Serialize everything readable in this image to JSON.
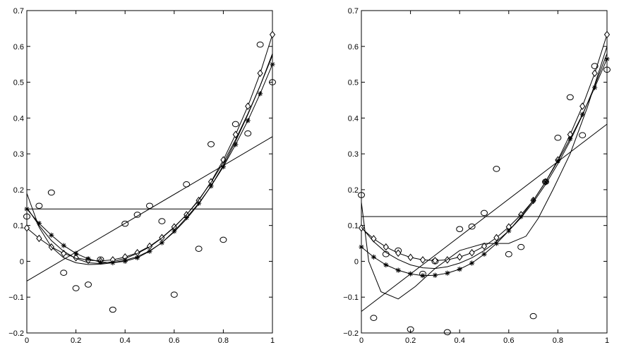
{
  "chart_data": [
    {
      "type": "scatter",
      "xlim": [
        0,
        1
      ],
      "ylim": [
        -0.2,
        0.7
      ],
      "x_ticks": [
        0,
        0.2,
        0.4,
        0.6,
        0.8,
        1
      ],
      "x_tick_labels": [
        "0",
        "0.2",
        "0.4",
        "0.6",
        "0.8",
        "1"
      ],
      "y_ticks": [
        -0.2,
        -0.1,
        0,
        0.1,
        0.2,
        0.3,
        0.4,
        0.5,
        0.6,
        0.7
      ],
      "y_tick_labels": [
        "−0.2",
        "−0.1",
        "0",
        "0.1",
        "0.2",
        "0.3",
        "0.4",
        "0.5",
        "0.6",
        "0.7"
      ],
      "grid": false,
      "series": [
        {
          "marker": "circle",
          "points": [
            [
              0,
              0.125
            ],
            [
              0.05,
              0.155
            ],
            [
              0.1,
              0.192
            ],
            [
              0.15,
              -0.032
            ],
            [
              0.2,
              -0.075
            ],
            [
              0.25,
              -0.065
            ],
            [
              0.3,
              0.005
            ],
            [
              0.35,
              -0.135
            ],
            [
              0.4,
              0.105
            ],
            [
              0.45,
              0.13
            ],
            [
              0.5,
              0.155
            ],
            [
              0.55,
              0.112
            ],
            [
              0.6,
              -0.093
            ],
            [
              0.65,
              0.215
            ],
            [
              0.7,
              0.035
            ],
            [
              0.75,
              0.327
            ],
            [
              0.8,
              0.06
            ],
            [
              0.85,
              0.383
            ],
            [
              0.9,
              0.357
            ],
            [
              0.95,
              0.605
            ],
            [
              1,
              0.5
            ]
          ]
        },
        {
          "marker": "diamond",
          "points": [
            [
              0,
              0.093
            ],
            [
              0.05,
              0.064
            ],
            [
              0.1,
              0.04
            ],
            [
              0.15,
              0.022
            ],
            [
              0.2,
              0.01
            ],
            [
              0.25,
              0.003
            ],
            [
              0.3,
              0.001
            ],
            [
              0.35,
              0.004
            ],
            [
              0.4,
              0.012
            ],
            [
              0.45,
              0.024
            ],
            [
              0.5,
              0.042
            ],
            [
              0.55,
              0.066
            ],
            [
              0.6,
              0.096
            ],
            [
              0.65,
              0.13
            ],
            [
              0.7,
              0.17
            ],
            [
              0.75,
              0.222
            ],
            [
              0.8,
              0.283
            ],
            [
              0.85,
              0.354
            ],
            [
              0.9,
              0.433
            ],
            [
              0.95,
              0.525
            ],
            [
              1,
              0.633
            ]
          ]
        },
        {
          "marker": "star",
          "points": [
            [
              0,
              0.146
            ],
            [
              0.05,
              0.106
            ],
            [
              0.1,
              0.073
            ],
            [
              0.15,
              0.044
            ],
            [
              0.2,
              0.022
            ],
            [
              0.25,
              0.007
            ],
            [
              0.3,
              -0.002
            ],
            [
              0.35,
              -0.004
            ],
            [
              0.4,
              0.0
            ],
            [
              0.45,
              0.01
            ],
            [
              0.5,
              0.028
            ],
            [
              0.55,
              0.052
            ],
            [
              0.6,
              0.084
            ],
            [
              0.65,
              0.122
            ],
            [
              0.7,
              0.162
            ],
            [
              0.75,
              0.21
            ],
            [
              0.8,
              0.264
            ],
            [
              0.85,
              0.326
            ],
            [
              0.9,
              0.393
            ],
            [
              0.95,
              0.468
            ],
            [
              1,
              0.55
            ]
          ]
        },
        {
          "line": true,
          "points": [
            [
              0,
              0.146
            ],
            [
              1,
              0.146
            ]
          ]
        },
        {
          "line": true,
          "points": [
            [
              0,
              -0.055
            ],
            [
              1,
              0.348
            ]
          ]
        },
        {
          "line": true,
          "points": [
            [
              0,
              0.19
            ],
            [
              0.05,
              0.095
            ],
            [
              0.1,
              0.04
            ],
            [
              0.15,
              0.01
            ],
            [
              0.2,
              -0.004
            ],
            [
              0.25,
              -0.009
            ],
            [
              0.3,
              -0.008
            ],
            [
              0.35,
              -0.004
            ],
            [
              0.4,
              0.003
            ],
            [
              0.45,
              0.013
            ],
            [
              0.5,
              0.029
            ],
            [
              0.55,
              0.052
            ],
            [
              0.6,
              0.082
            ],
            [
              0.65,
              0.118
            ],
            [
              0.7,
              0.16
            ],
            [
              0.75,
              0.21
            ],
            [
              0.8,
              0.268
            ],
            [
              0.85,
              0.335
            ],
            [
              0.9,
              0.41
            ],
            [
              0.95,
              0.49
            ],
            [
              1,
              0.575
            ]
          ]
        },
        {
          "line": true,
          "points": [
            [
              0,
              0.15
            ],
            [
              0.05,
              0.1
            ],
            [
              0.1,
              0.058
            ],
            [
              0.15,
              0.028
            ],
            [
              0.2,
              0.008
            ],
            [
              0.25,
              -0.004
            ],
            [
              0.3,
              -0.006
            ],
            [
              0.35,
              -0.001
            ],
            [
              0.4,
              0.008
            ],
            [
              0.45,
              0.022
            ],
            [
              0.5,
              0.04
            ],
            [
              0.55,
              0.065
            ],
            [
              0.6,
              0.095
            ],
            [
              0.65,
              0.13
            ],
            [
              0.7,
              0.172
            ],
            [
              0.75,
              0.22
            ],
            [
              0.8,
              0.276
            ],
            [
              0.85,
              0.34
            ],
            [
              0.9,
              0.412
            ],
            [
              0.95,
              0.49
            ],
            [
              1,
              0.58
            ]
          ]
        }
      ]
    },
    {
      "type": "scatter",
      "xlim": [
        0,
        1
      ],
      "ylim": [
        -0.2,
        0.7
      ],
      "x_ticks": [
        0,
        0.2,
        0.4,
        0.6,
        0.8,
        1
      ],
      "x_tick_labels": [
        "0",
        "0.2",
        "0.4",
        "0.6",
        "0.8",
        "1"
      ],
      "y_ticks": [
        -0.2,
        -0.1,
        0,
        0.1,
        0.2,
        0.3,
        0.4,
        0.5,
        0.6,
        0.7
      ],
      "y_tick_labels": [
        "−0.2",
        "−0.1",
        "0",
        "0.1",
        "0.2",
        "0.3",
        "0.4",
        "0.5",
        "0.6",
        "0.7"
      ],
      "grid": false,
      "series": [
        {
          "marker": "circle",
          "points": [
            [
              0,
              0.185
            ],
            [
              0.05,
              -0.158
            ],
            [
              0.1,
              0.02
            ],
            [
              0.15,
              0.03
            ],
            [
              0.2,
              -0.19
            ],
            [
              0.25,
              -0.035
            ],
            [
              0.3,
              0.0
            ],
            [
              0.35,
              -0.198
            ],
            [
              0.4,
              0.09
            ],
            [
              0.45,
              0.097
            ],
            [
              0.5,
              0.135
            ],
            [
              0.55,
              0.258
            ],
            [
              0.6,
              0.02
            ],
            [
              0.65,
              0.04
            ],
            [
              0.7,
              -0.153
            ],
            [
              0.75,
              0.222
            ],
            [
              0.8,
              0.345
            ],
            [
              0.85,
              0.458
            ],
            [
              0.9,
              0.352
            ],
            [
              0.95,
              0.545
            ],
            [
              1,
              0.535
            ]
          ]
        },
        {
          "marker": "diamond",
          "points": [
            [
              0,
              0.093
            ],
            [
              0.05,
              0.063
            ],
            [
              0.1,
              0.04
            ],
            [
              0.15,
              0.023
            ],
            [
              0.2,
              0.011
            ],
            [
              0.25,
              0.004
            ],
            [
              0.3,
              0.002
            ],
            [
              0.35,
              0.004
            ],
            [
              0.4,
              0.012
            ],
            [
              0.45,
              0.024
            ],
            [
              0.5,
              0.042
            ],
            [
              0.55,
              0.066
            ],
            [
              0.6,
              0.096
            ],
            [
              0.65,
              0.13
            ],
            [
              0.7,
              0.17
            ],
            [
              0.75,
              0.222
            ],
            [
              0.8,
              0.283
            ],
            [
              0.85,
              0.354
            ],
            [
              0.9,
              0.433
            ],
            [
              0.95,
              0.525
            ],
            [
              1,
              0.633
            ]
          ]
        },
        {
          "marker": "star",
          "points": [
            [
              0,
              0.04
            ],
            [
              0.05,
              0.012
            ],
            [
              0.1,
              -0.01
            ],
            [
              0.15,
              -0.025
            ],
            [
              0.2,
              -0.035
            ],
            [
              0.25,
              -0.04
            ],
            [
              0.3,
              -0.039
            ],
            [
              0.35,
              -0.033
            ],
            [
              0.4,
              -0.022
            ],
            [
              0.45,
              -0.005
            ],
            [
              0.5,
              0.02
            ],
            [
              0.55,
              0.05
            ],
            [
              0.6,
              0.085
            ],
            [
              0.65,
              0.125
            ],
            [
              0.7,
              0.17
            ],
            [
              0.75,
              0.222
            ],
            [
              0.8,
              0.28
            ],
            [
              0.85,
              0.342
            ],
            [
              0.9,
              0.41
            ],
            [
              0.95,
              0.485
            ],
            [
              1,
              0.565
            ]
          ]
        },
        {
          "line": true,
          "points": [
            [
              0,
              0.125
            ],
            [
              1,
              0.125
            ]
          ]
        },
        {
          "line": true,
          "points": [
            [
              0,
              -0.14
            ],
            [
              1,
              0.383
            ]
          ]
        },
        {
          "line": true,
          "points": [
            [
              0,
              0.095
            ],
            [
              0.05,
              0.055
            ],
            [
              0.1,
              0.025
            ],
            [
              0.15,
              0.005
            ],
            [
              0.2,
              -0.01
            ],
            [
              0.25,
              -0.018
            ],
            [
              0.3,
              -0.02
            ],
            [
              0.35,
              -0.015
            ],
            [
              0.4,
              -0.005
            ],
            [
              0.45,
              0.01
            ],
            [
              0.5,
              0.03
            ],
            [
              0.55,
              0.055
            ],
            [
              0.6,
              0.085
            ],
            [
              0.65,
              0.122
            ],
            [
              0.7,
              0.165
            ],
            [
              0.75,
              0.215
            ],
            [
              0.8,
              0.272
            ],
            [
              0.85,
              0.336
            ],
            [
              0.9,
              0.408
            ],
            [
              0.95,
              0.49
            ],
            [
              1,
              0.58
            ]
          ]
        },
        {
          "line": true,
          "points": [
            [
              0,
              0.165
            ],
            [
              0.03,
              0.0
            ],
            [
              0.08,
              -0.085
            ],
            [
              0.15,
              -0.105
            ],
            [
              0.22,
              -0.07
            ],
            [
              0.3,
              -0.02
            ],
            [
              0.4,
              0.03
            ],
            [
              0.5,
              0.05
            ],
            [
              0.6,
              0.05
            ],
            [
              0.67,
              0.07
            ],
            [
              0.72,
              0.12
            ],
            [
              0.78,
              0.2
            ],
            [
              0.85,
              0.3
            ],
            [
              0.92,
              0.43
            ],
            [
              1,
              0.6
            ]
          ]
        }
      ]
    }
  ]
}
